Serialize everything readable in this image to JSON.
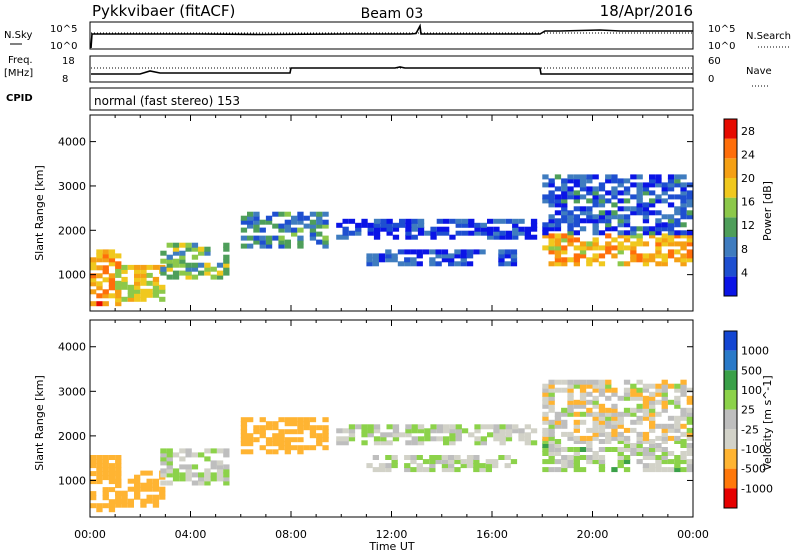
{
  "header": {
    "station": "Pykkvibaer (fitACF)",
    "beam": "Beam 03",
    "date": "18/Apr/2016"
  },
  "top_panels": {
    "nsky_label": "N.Sky",
    "nsearch_label": "N.Search",
    "noise_tick_high": "10^5",
    "noise_tick_low": "10^0",
    "freq_label": "Freq.",
    "freq_unit": "[MHz]",
    "freq_tick_high": "18",
    "freq_tick_low": "8",
    "nave_label": "Nave",
    "nave_tick_high": "60",
    "nave_tick_low": "0",
    "cpid_label": "CPID",
    "cpid_text": "normal (fast stereo) 153"
  },
  "colors": {
    "power_scale": [
      "#0a14e6",
      "#1e4fd0",
      "#3f7cbf",
      "#4e9e5a",
      "#8cc84a",
      "#f0c81e",
      "#f5a014",
      "#ff6e0a",
      "#e60a00"
    ],
    "velocity_scale": [
      "#1446d2",
      "#2a7ac8",
      "#3aa048",
      "#8cd24a",
      "#bebebe",
      "#d2d2c8",
      "#ffb432",
      "#ff780a",
      "#e60000"
    ]
  },
  "chart_data": [
    {
      "type": "heatmap",
      "title": "",
      "xlabel": "",
      "ylabel": "Slant Range [km]",
      "xlim": [
        "00:00",
        "00:00"
      ],
      "x_ticks": [
        "00:00",
        "04:00",
        "08:00",
        "12:00",
        "16:00",
        "20:00",
        "00:00"
      ],
      "ylim": [
        180,
        4600
      ],
      "y_ticks": [
        "1000",
        "2000",
        "3000",
        "4000"
      ],
      "colorbar": {
        "label": "Power [dB]",
        "ticks": [
          "4",
          "8",
          "12",
          "16",
          "20",
          "24",
          "28"
        ],
        "range": [
          0,
          30
        ]
      },
      "echo_regions": [
        {
          "time": [
            0.0,
            1.2
          ],
          "range": [
            400,
            1600
          ],
          "power": 22
        },
        {
          "time": [
            1.0,
            3.0
          ],
          "range": [
            500,
            1300
          ],
          "power": 18
        },
        {
          "time": [
            2.8,
            5.5
          ],
          "range": [
            1000,
            1800
          ],
          "power": 13
        },
        {
          "time": [
            6.0,
            9.5
          ],
          "range": [
            1700,
            2500
          ],
          "power": 9
        },
        {
          "time": [
            9.8,
            17.8
          ],
          "range": [
            1900,
            2300
          ],
          "power": 4
        },
        {
          "time": [
            11.0,
            17.0
          ],
          "range": [
            1300,
            1600
          ],
          "power": 5
        },
        {
          "time": [
            18.0,
            24.0
          ],
          "range": [
            1300,
            2000
          ],
          "power": 21
        },
        {
          "time": [
            18.0,
            24.0
          ],
          "range": [
            2000,
            3300
          ],
          "power": 6
        }
      ]
    },
    {
      "type": "heatmap",
      "title": "",
      "xlabel": "Time UT",
      "ylabel": "Slant Range [km]",
      "xlim": [
        "00:00",
        "00:00"
      ],
      "x_ticks": [
        "00:00",
        "04:00",
        "08:00",
        "12:00",
        "16:00",
        "20:00",
        "00:00"
      ],
      "ylim": [
        180,
        4600
      ],
      "y_ticks": [
        "1000",
        "2000",
        "3000",
        "4000"
      ],
      "colorbar": {
        "label": "Velocity [m s^-1]",
        "ticks": [
          "1000",
          "500",
          "100",
          "25",
          "-25",
          "-100",
          "-500",
          "-1000"
        ],
        "range": [
          -1000,
          1000
        ]
      },
      "echo_regions": [
        {
          "time": [
            0.0,
            1.2
          ],
          "range": [
            400,
            1600
          ],
          "velocity": -300
        },
        {
          "time": [
            1.0,
            3.0
          ],
          "range": [
            500,
            1300
          ],
          "velocity": -400
        },
        {
          "time": [
            2.8,
            5.5
          ],
          "range": [
            1000,
            1800
          ],
          "velocity": 0
        },
        {
          "time": [
            6.0,
            9.5
          ],
          "range": [
            1700,
            2500
          ],
          "velocity": -250
        },
        {
          "time": [
            9.8,
            17.8
          ],
          "range": [
            1900,
            2300
          ],
          "velocity": 0
        },
        {
          "time": [
            11.0,
            17.0
          ],
          "range": [
            1300,
            1600
          ],
          "velocity": 0
        },
        {
          "time": [
            18.0,
            24.0
          ],
          "range": [
            1300,
            2000
          ],
          "velocity": 10
        },
        {
          "time": [
            18.0,
            24.0
          ],
          "range": [
            2000,
            3300
          ],
          "velocity": -50
        }
      ]
    }
  ]
}
